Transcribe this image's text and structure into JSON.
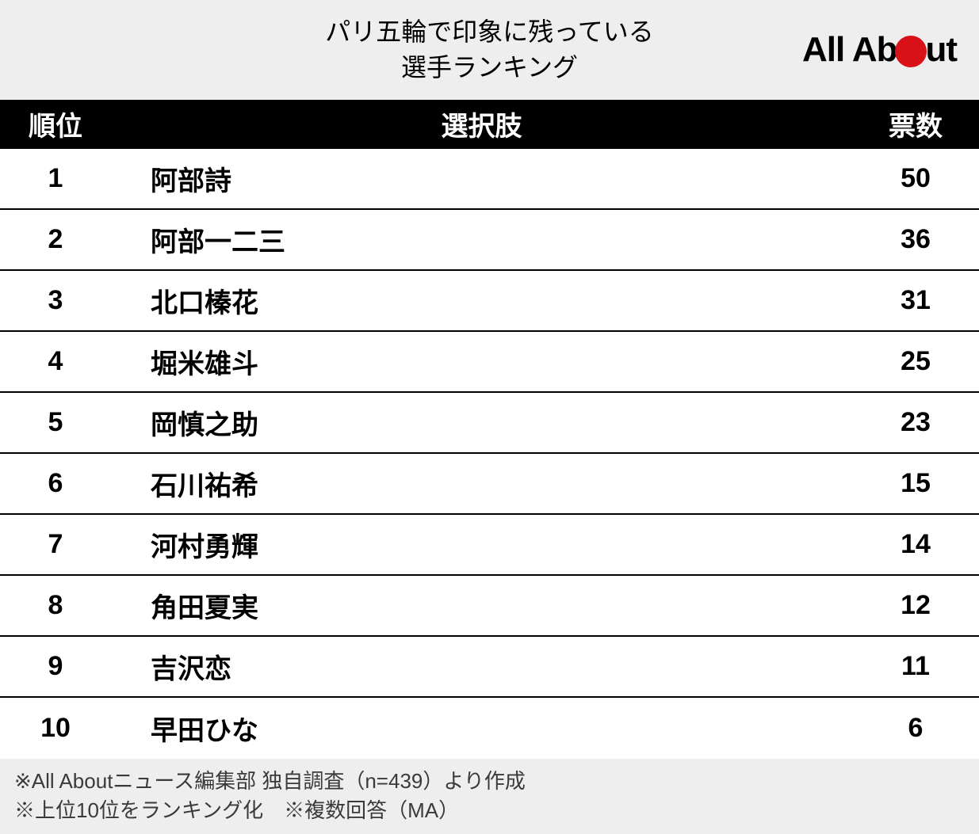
{
  "header": {
    "title_line1": "パリ五輪で印象に残っている",
    "title_line2": "選手ランキング",
    "logo_text_before": "All Ab",
    "logo_text_after": "ut",
    "logo_dot_color": "#d9121a"
  },
  "table": {
    "columns": {
      "rank": "順位",
      "name": "選択肢",
      "votes": "票数"
    },
    "header_bg": "#000000",
    "header_color": "#ffffff",
    "row_border_color": "#000000",
    "rows": [
      {
        "rank": "1",
        "name": "阿部詩",
        "votes": "50"
      },
      {
        "rank": "2",
        "name": "阿部一二三",
        "votes": "36"
      },
      {
        "rank": "3",
        "name": "北口榛花",
        "votes": "31"
      },
      {
        "rank": "4",
        "name": "堀米雄斗",
        "votes": "25"
      },
      {
        "rank": "5",
        "name": "岡慎之助",
        "votes": "23"
      },
      {
        "rank": "6",
        "name": "石川祐希",
        "votes": "15"
      },
      {
        "rank": "7",
        "name": "河村勇輝",
        "votes": "14"
      },
      {
        "rank": "8",
        "name": "角田夏実",
        "votes": "12"
      },
      {
        "rank": "9",
        "name": "吉沢恋",
        "votes": "11"
      },
      {
        "rank": "10",
        "name": "早田ひな",
        "votes": "6"
      }
    ]
  },
  "footer": {
    "line1": "※All Aboutニュース編集部 独自調査（n=439）より作成",
    "line2": "※上位10位をランキング化　※複数回答（MA）"
  },
  "colors": {
    "header_bg": "#eeeeee",
    "footer_bg": "#eeeeee",
    "text": "#000000",
    "footer_text": "#3a3a3a"
  }
}
